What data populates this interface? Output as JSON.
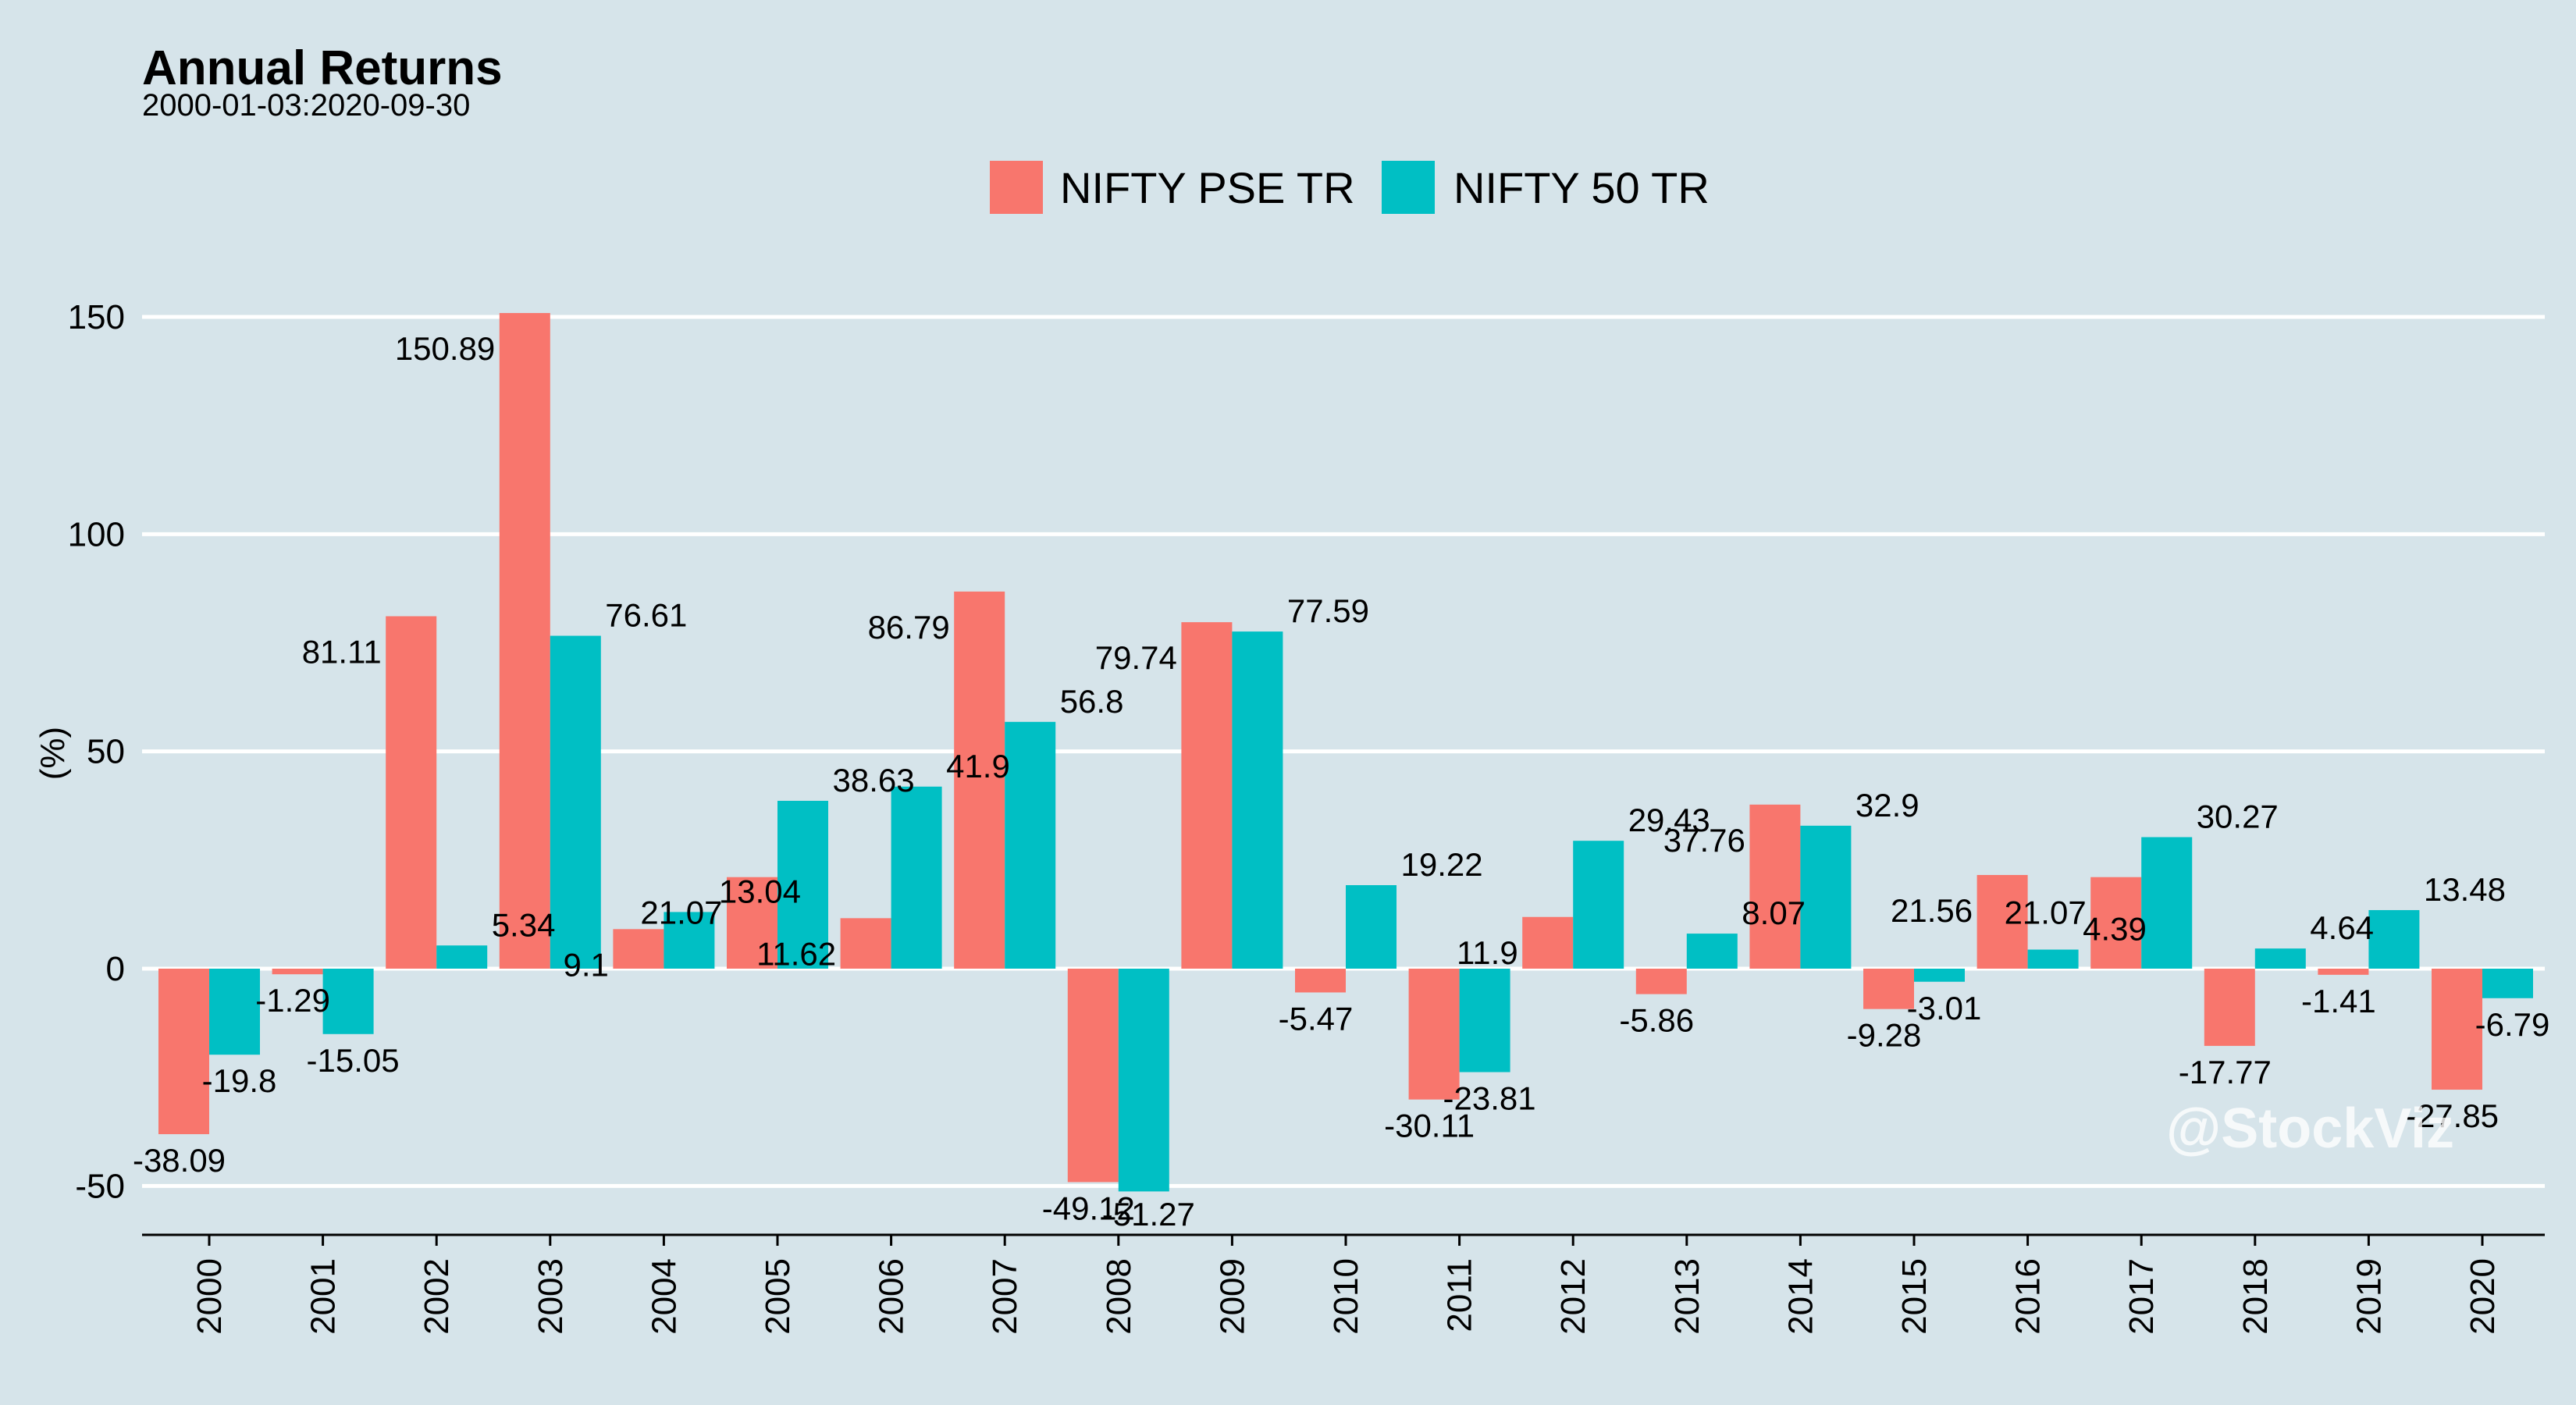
{
  "chart_data": {
    "type": "bar",
    "title": "Annual Returns",
    "subtitle": "2000-01-03:2020-09-30",
    "xlabel": "",
    "ylabel": "(%)",
    "ylim": [
      -62,
      162
    ],
    "yticks": [
      -50,
      0,
      50,
      100,
      150
    ],
    "grid": true,
    "legend_position": "top",
    "watermark": "@StockViz",
    "categories": [
      "2000",
      "2001",
      "2002",
      "2003",
      "2004",
      "2005",
      "2006",
      "2007",
      "2008",
      "2009",
      "2010",
      "2011",
      "2012",
      "2013",
      "2014",
      "2015",
      "2016",
      "2017",
      "2018",
      "2019",
      "2020"
    ],
    "series": [
      {
        "name": "NIFTY PSE TR",
        "color": "#f8766d",
        "values": [
          -38.09,
          -1.29,
          81.11,
          150.89,
          9.1,
          21.07,
          11.62,
          86.79,
          -49.12,
          79.74,
          -5.47,
          -30.11,
          11.9,
          -5.86,
          37.76,
          -9.28,
          21.56,
          21.07,
          -17.77,
          -1.41,
          -27.85
        ]
      },
      {
        "name": "NIFTY 50 TR",
        "color": "#00bfc4",
        "values": [
          -19.8,
          -15.05,
          5.34,
          76.61,
          13.04,
          38.63,
          41.9,
          56.8,
          -51.27,
          77.59,
          19.22,
          -23.81,
          29.43,
          8.07,
          32.9,
          -3.01,
          4.39,
          30.27,
          4.64,
          13.48,
          -6.79
        ]
      }
    ]
  }
}
